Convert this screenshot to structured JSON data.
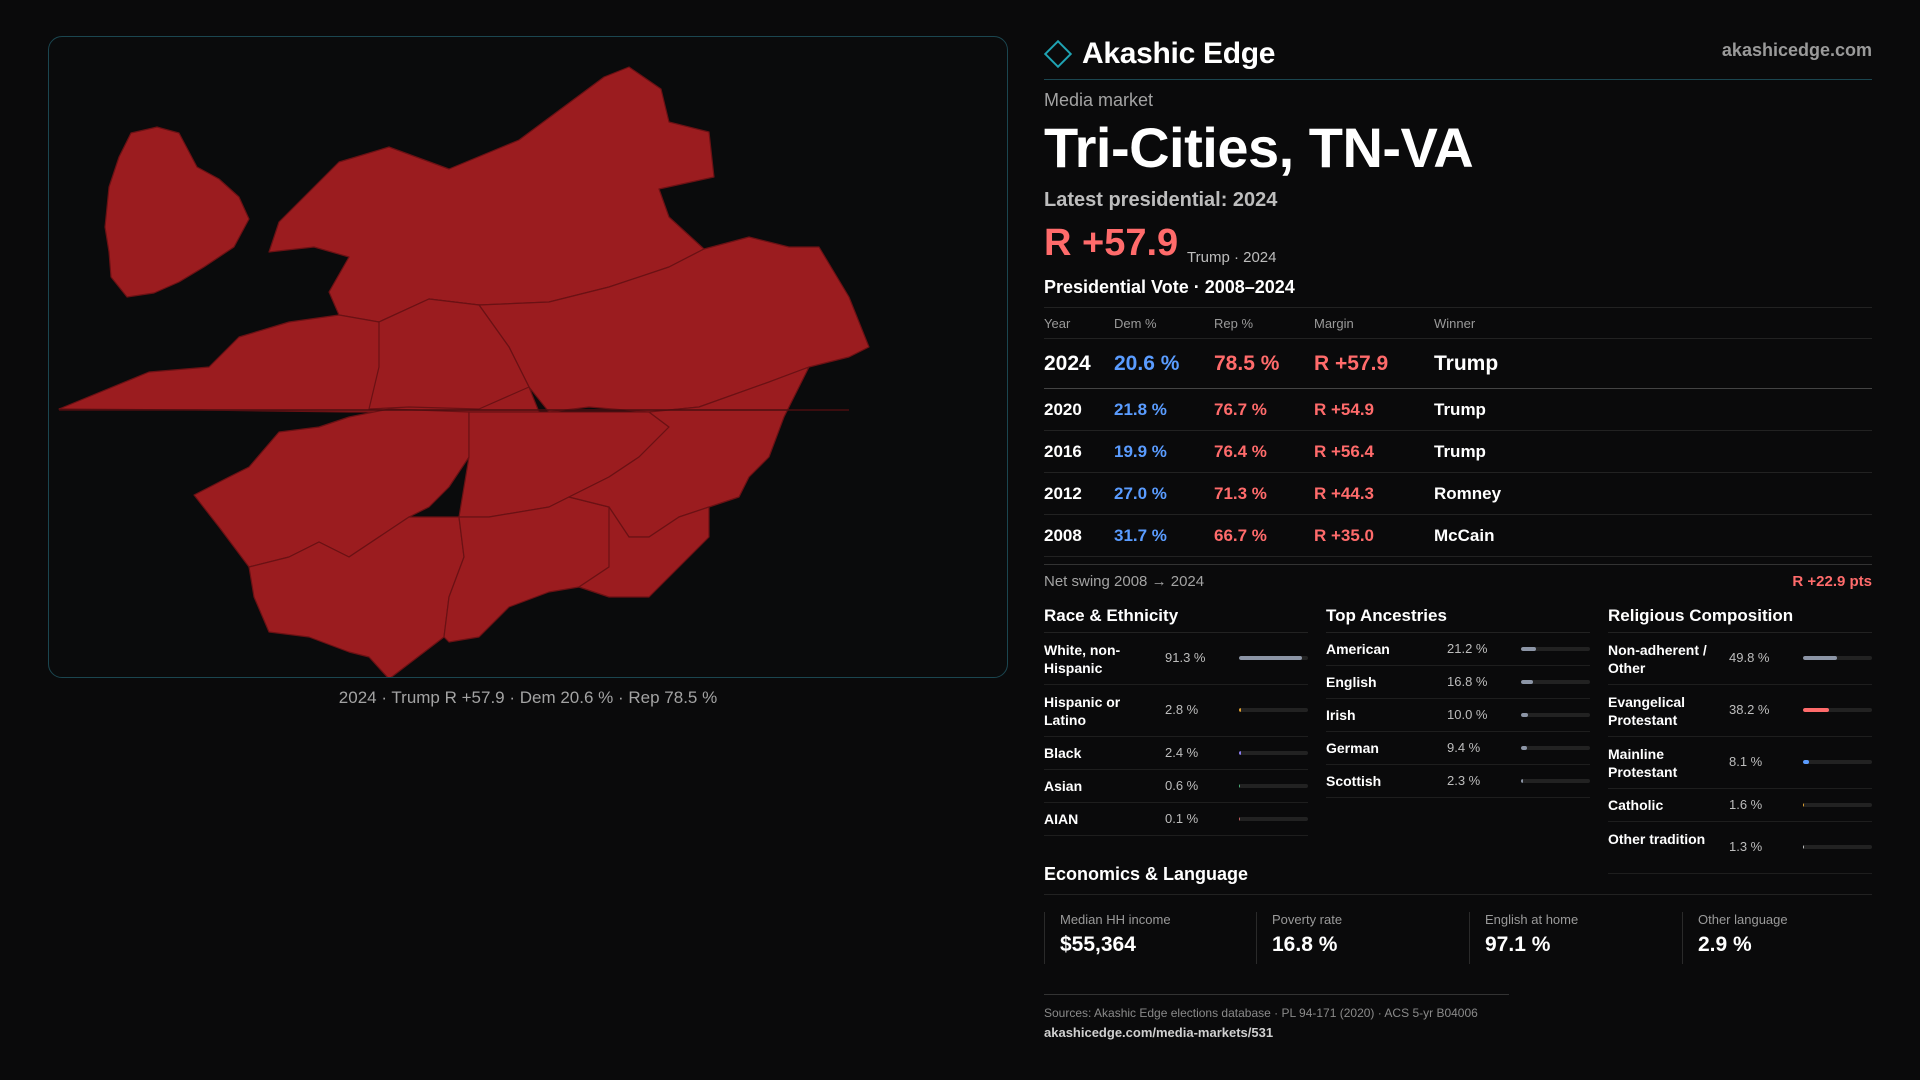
{
  "brand": {
    "name": "Akashic Edge",
    "site": "akashicedge.com",
    "accent": "#1fa3b3"
  },
  "market": {
    "kicker": "Media market",
    "name": "Tri-Cities, TN-VA",
    "latest_label": "Latest presidential: 2024",
    "latest_margin": "R +57.9",
    "latest_note": "Trump · 2024"
  },
  "map": {
    "caption": "2024 · Trump R +57.9 · Dem 20.6 % · Rep 78.5 %",
    "fill_color": "#9b1c1f"
  },
  "vote_table": {
    "title": "Presidential Vote · 2008–2024",
    "headers": {
      "year": "Year",
      "dem": "Dem %",
      "rep": "Rep %",
      "margin": "Margin",
      "winner": "Winner"
    },
    "rows": [
      {
        "year": "2024",
        "dem": "20.6 %",
        "rep": "78.5 %",
        "margin": "R +57.9",
        "winner": "Trump"
      },
      {
        "year": "2020",
        "dem": "21.8 %",
        "rep": "76.7 %",
        "margin": "R +54.9",
        "winner": "Trump"
      },
      {
        "year": "2016",
        "dem": "19.9 %",
        "rep": "76.4 %",
        "margin": "R +56.4",
        "winner": "Trump"
      },
      {
        "year": "2012",
        "dem": "27.0 %",
        "rep": "71.3 %",
        "margin": "R +44.3",
        "winner": "Romney"
      },
      {
        "year": "2008",
        "dem": "31.7 %",
        "rep": "66.7 %",
        "margin": "R +35.0",
        "winner": "McCain"
      }
    ]
  },
  "swing": {
    "label": "Net swing 2008 → 2024",
    "value": "R +22.9 pts"
  },
  "race": {
    "title": "Race & Ethnicity",
    "items": [
      {
        "label": "White, non-Hispanic",
        "value": "91.3 %",
        "share": 0.913,
        "color": "#8c95a6"
      },
      {
        "label": "Hispanic or Latino",
        "value": "2.8 %",
        "share": 0.028,
        "color": "#e0a030"
      },
      {
        "label": "Black",
        "value": "2.4 %",
        "share": 0.024,
        "color": "#8a7cf0"
      },
      {
        "label": "Asian",
        "value": "0.6 %",
        "share": 0.006,
        "color": "#4caf7a"
      },
      {
        "label": "AIAN",
        "value": "0.1 %",
        "share": 0.001,
        "color": "#c06060"
      }
    ]
  },
  "ancestry": {
    "title": "Top Ancestries",
    "items": [
      {
        "label": "American",
        "value": "21.2 %",
        "share": 0.212,
        "color": "#8c95a6"
      },
      {
        "label": "English",
        "value": "16.8 %",
        "share": 0.168,
        "color": "#8c95a6"
      },
      {
        "label": "Irish",
        "value": "10.0 %",
        "share": 0.1,
        "color": "#8c95a6"
      },
      {
        "label": "German",
        "value": "9.4 %",
        "share": 0.094,
        "color": "#8c95a6"
      },
      {
        "label": "Scottish",
        "value": "2.3 %",
        "share": 0.023,
        "color": "#8c95a6"
      }
    ]
  },
  "religion": {
    "title": "Religious Composition",
    "items": [
      {
        "label": "Non-adherent / Other",
        "value": "49.8 %",
        "share": 0.498,
        "color": "#8c95a6"
      },
      {
        "label": "Evangelical Protestant",
        "value": "38.2 %",
        "share": 0.382,
        "color": "#ff6b6b"
      },
      {
        "label": "Mainline Protestant",
        "value": "8.1 %",
        "share": 0.081,
        "color": "#5a9cff"
      },
      {
        "label": "Catholic",
        "value": "1.6 %",
        "share": 0.016,
        "color": "#e0a030"
      },
      {
        "label": "Other tradition",
        "value": "1.3 %",
        "share": 0.013,
        "color": "#c0c0c0"
      }
    ]
  },
  "economics": {
    "title": "Economics & Language",
    "stats": [
      {
        "label": "Median HH income",
        "value": "$55,364"
      },
      {
        "label": "Poverty rate",
        "value": "16.8 %"
      },
      {
        "label": "English at home",
        "value": "97.1 %"
      },
      {
        "label": "Other language",
        "value": "2.9 %"
      }
    ]
  },
  "footer": {
    "sources": "Sources: Akashic Edge elections database · PL 94-171 (2020) · ACS 5-yr B04006",
    "url": "akashicedge.com/media-markets/531"
  }
}
